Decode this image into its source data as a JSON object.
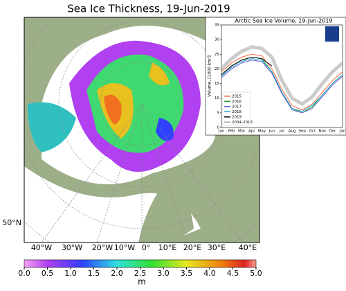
{
  "title": "Sea Ice Thickness, 19-Jun-2019",
  "map": {
    "lon_labels": [
      "40°W",
      "30°W",
      "20°W",
      "10°W",
      "0°",
      "10°E",
      "20°E",
      "30°E",
      "40°E"
    ],
    "lat_labels": [
      "50°N"
    ]
  },
  "colorbar": {
    "label": "m",
    "ticks": [
      {
        "value": 0,
        "label": "0.0"
      },
      0.5,
      {
        "value": 1,
        "label": "1.0"
      },
      1.5,
      {
        "value": 2,
        "label": "2.0"
      },
      2.5,
      {
        "value": 3,
        "label": "3.0"
      },
      3.5,
      {
        "value": 4,
        "label": "4.0"
      },
      4.5,
      {
        "value": 5,
        "label": "5.0"
      }
    ],
    "lim": [
      0,
      5
    ]
  },
  "chart_data": {
    "type": "line",
    "title": "Arctic Sea Ice Volume, 19-Jun-2019",
    "ylabel": "Volume, [1000 km³]",
    "categories": [
      "Jan",
      "Feb",
      "Mar",
      "Apr",
      "May",
      "Jun",
      "Jul",
      "Aug",
      "Sep",
      "Oct",
      "Nov",
      "Dec",
      "Jan"
    ],
    "ylim": [
      0,
      35
    ],
    "yticks": [
      0,
      5,
      10,
      15,
      20,
      25,
      30,
      35
    ],
    "legend": "lower left",
    "series": [
      {
        "name": "2015",
        "color": "#f0643c",
        "values": [
          19,
          22,
          24,
          25,
          24.5,
          20,
          13,
          7.5,
          6,
          8,
          12,
          16,
          19
        ]
      },
      {
        "name": "2016",
        "color": "#2ca02c",
        "values": [
          18,
          21,
          23,
          24,
          23.5,
          19,
          12,
          6.5,
          5,
          7,
          11,
          15,
          18
        ]
      },
      {
        "name": "2017",
        "color": "#6060d0",
        "values": [
          17,
          20,
          22,
          23,
          22.5,
          18.5,
          11.5,
          6,
          5,
          6.5,
          10.5,
          14.5,
          17.5
        ]
      },
      {
        "name": "2018",
        "color": "#1fa0d0",
        "values": [
          17.5,
          20.5,
          22.5,
          23.5,
          23,
          19,
          12,
          6.5,
          5.5,
          7.5,
          11,
          15,
          18
        ]
      },
      {
        "name": "2019",
        "color": "#000000",
        "values": [
          18,
          21,
          23,
          24,
          23.5,
          21,
          null,
          null,
          null,
          null,
          null,
          null,
          null
        ]
      },
      {
        "name": "2004-2013",
        "color": "#a8a8a8",
        "values": [
          20,
          23.5,
          26,
          27.5,
          27,
          24,
          16,
          10,
          8,
          10.5,
          15,
          19,
          22
        ]
      }
    ]
  }
}
